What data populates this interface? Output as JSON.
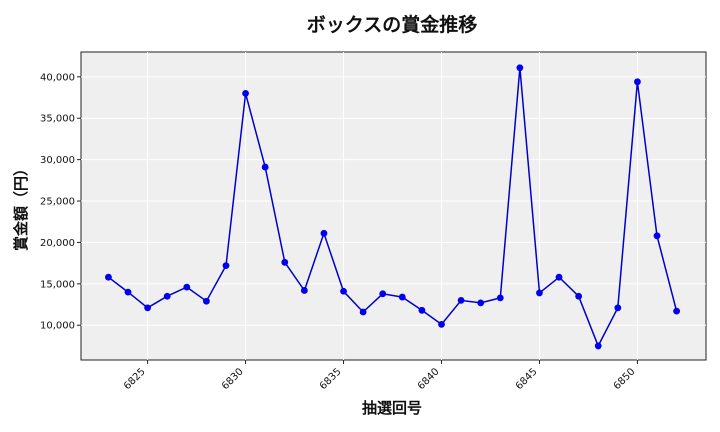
{
  "chart_data": {
    "type": "line",
    "title": "ボックスの賞金推移",
    "xlabel": "抽選回号",
    "ylabel": "賞金額（円）",
    "x": [
      6823,
      6824,
      6825,
      6826,
      6827,
      6828,
      6829,
      6830,
      6831,
      6832,
      6833,
      6834,
      6835,
      6836,
      6837,
      6838,
      6839,
      6840,
      6841,
      6842,
      6843,
      6844,
      6845,
      6846,
      6847,
      6848,
      6849,
      6850,
      6851,
      6852
    ],
    "values": [
      15800,
      14000,
      12100,
      13500,
      14600,
      12900,
      17200,
      38000,
      29100,
      17600,
      14200,
      21100,
      14100,
      11600,
      13800,
      13400,
      11800,
      10100,
      13000,
      12700,
      13300,
      41100,
      13900,
      15800,
      13500,
      7500,
      12100,
      39400,
      20800,
      11700
    ],
    "xlim": [
      6821.6,
      6853.5
    ],
    "ylim": [
      5800,
      43000
    ],
    "xticks": [
      6825,
      6830,
      6835,
      6840,
      6845,
      6850
    ],
    "yticks": [
      10000,
      15000,
      20000,
      25000,
      30000,
      35000,
      40000
    ],
    "ytick_labels": [
      "10,000",
      "15,000",
      "20,000",
      "25,000",
      "30,000",
      "35,000",
      "40,000"
    ],
    "grid": true,
    "line_color": "#0000cc",
    "marker_color": "#0000ee",
    "plot_background": "#efefef"
  }
}
